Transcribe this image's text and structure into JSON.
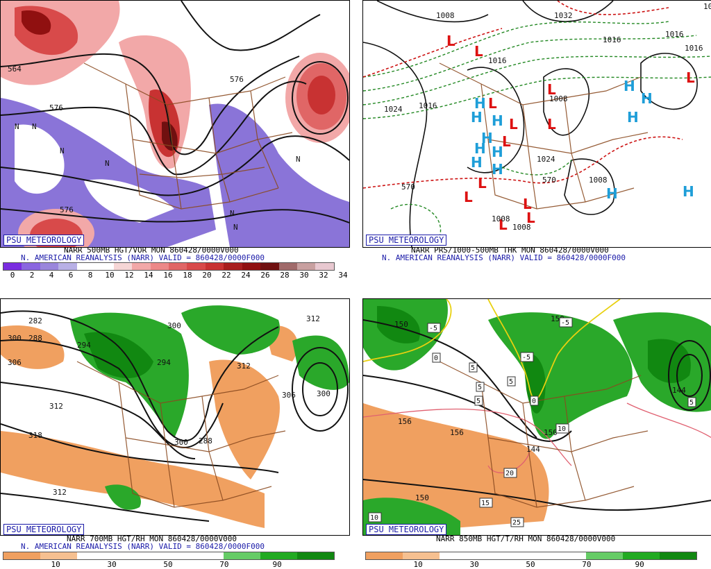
{
  "badge": "PSU METEOROLOGY",
  "panels": {
    "vort": {
      "line1": "NARR 500MB HGT/VOR MON 860428/0000V000",
      "line2": "N. AMERICAN REANALYSIS (NARR) VALID = 860428/0000F000",
      "colorbar_labels": [
        "0",
        "2",
        "4",
        "6",
        "8",
        "10",
        "12",
        "14",
        "16",
        "18",
        "20",
        "22",
        "24",
        "26",
        "28",
        "30",
        "32",
        "34"
      ],
      "colorbar_colors": [
        "#7a2ce0",
        "#8a66e0",
        "#9a86dc",
        "#b8b0e6",
        "#fff",
        "#fff",
        "#f6d6d6",
        "#f2a8a8",
        "#ec8888",
        "#e06666",
        "#d84a4a",
        "#c83232",
        "#a81e1e",
        "#901010",
        "#701010",
        "#a06a6a",
        "#c8a0a0",
        "#e8c8d0"
      ],
      "labels": [
        "576",
        "564",
        "576",
        "576",
        "N",
        "N",
        "N",
        "N",
        "N",
        "N",
        "N"
      ]
    },
    "prs": {
      "line1": "NARR PRS/1000-500MB THK MON 860428/0000V000",
      "line2": "N. AMERICAN REANALYSIS (NARR) VALID = 860428/0000F000",
      "labels": [
        "1008",
        "1024",
        "1016",
        "1016",
        "1032",
        "1016",
        "1008",
        "1024",
        "1016",
        "1008",
        "1008",
        "1016",
        "570",
        "570",
        "1008",
        "1008"
      ],
      "highs": [
        "H",
        "H",
        "H",
        "H",
        "H",
        "H",
        "H",
        "H",
        "H",
        "H",
        "H",
        "H",
        "H"
      ],
      "lows": [
        "L",
        "L",
        "L",
        "L",
        "L",
        "L",
        "L",
        "L",
        "L",
        "L",
        "L",
        "L",
        "L"
      ]
    },
    "rh700": {
      "line1": "NARR 700MB HGT/RH MON 860428/0000V000",
      "line2": "N. AMERICAN REANALYSIS (NARR) VALID = 860428/0000F000",
      "colorbar_labels": [
        "10",
        "30",
        "50",
        "70",
        "90"
      ],
      "colorbar_colors": [
        "#f0a060",
        "#f6c090",
        "#fff",
        "#fff",
        "#fff",
        "#fff",
        "#66cc66",
        "#22aa22",
        "#118811"
      ],
      "labels": [
        "282",
        "288",
        "300",
        "306",
        "294",
        "294",
        "300",
        "312",
        "312",
        "318",
        "306",
        "300",
        "300",
        "288",
        "312",
        "312"
      ]
    },
    "t850": {
      "line1": "NARR 850MB HGT/T/RH MON 860428/0000V000",
      "colorbar_labels": [
        "10",
        "30",
        "50",
        "70",
        "90"
      ],
      "colorbar_colors": [
        "#f0a060",
        "#f6c090",
        "#fff",
        "#fff",
        "#fff",
        "#fff",
        "#66cc66",
        "#22aa22",
        "#118811"
      ],
      "labels": [
        "150",
        "156",
        "150",
        "144",
        "156",
        "150",
        "144",
        "150"
      ],
      "temps": [
        "-5",
        "5",
        "5",
        "5",
        "-5",
        "0",
        "0",
        "5",
        "10",
        "15",
        "20",
        "25",
        "10",
        "-5",
        "5"
      ]
    }
  }
}
